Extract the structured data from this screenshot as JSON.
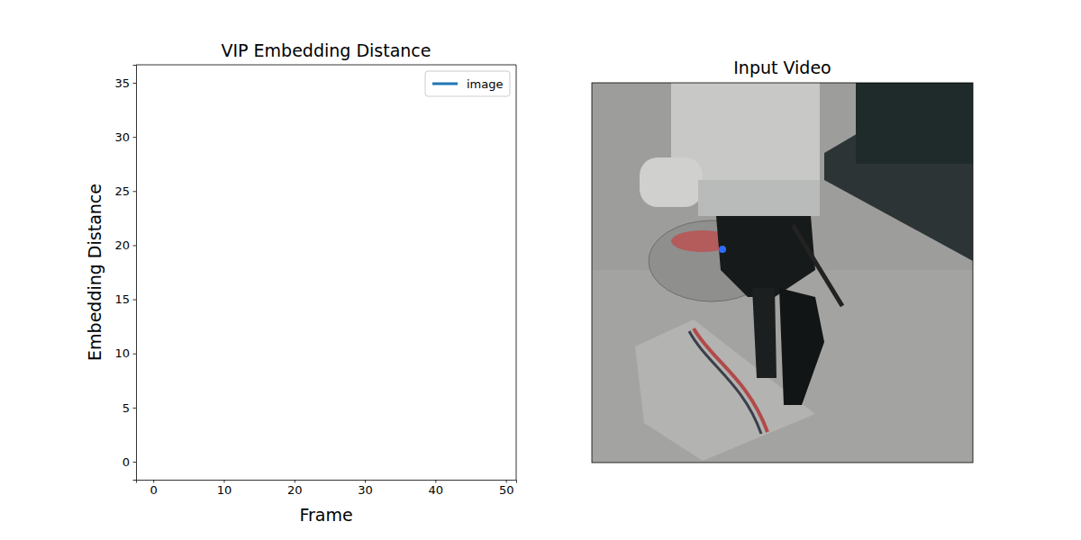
{
  "chart_data": [
    {
      "type": "line",
      "title": "VIP Embedding Distance",
      "x_label": "Frame",
      "y_label": "Embedding Distance",
      "x": [],
      "series": [
        {
          "name": "image",
          "color": "#1f77b4",
          "values": []
        }
      ],
      "xlim": [
        -2.45,
        51.45
      ],
      "xticks": [
        0,
        10,
        20,
        30,
        40,
        50
      ],
      "ylim": [
        -1.66,
        36.66
      ],
      "yticks": [
        0,
        5,
        10,
        15,
        20,
        25,
        30,
        35
      ],
      "legend": "upper right",
      "grid": false
    },
    {
      "type": "image",
      "title": "Input Video"
    }
  ]
}
